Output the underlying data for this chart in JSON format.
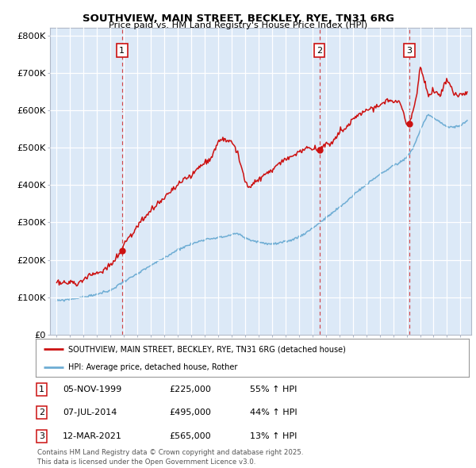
{
  "title": "SOUTHVIEW, MAIN STREET, BECKLEY, RYE, TN31 6RG",
  "subtitle": "Price paid vs. HM Land Registry's House Price Index (HPI)",
  "bg_color": "#dce9f7",
  "outer_bg_color": "#ffffff",
  "red_color": "#cc1111",
  "blue_color": "#6eadd4",
  "sale_dates_decimal": [
    1999.847,
    2014.513,
    2021.192
  ],
  "sale_prices": [
    225000,
    495000,
    565000
  ],
  "sale_labels": [
    "1",
    "2",
    "3"
  ],
  "legend_red": "SOUTHVIEW, MAIN STREET, BECKLEY, RYE, TN31 6RG (detached house)",
  "legend_blue": "HPI: Average price, detached house, Rother",
  "table": [
    {
      "num": "1",
      "date": "05-NOV-1999",
      "price": "£225,000",
      "change": "55% ↑ HPI"
    },
    {
      "num": "2",
      "date": "07-JUL-2014",
      "price": "£495,000",
      "change": "44% ↑ HPI"
    },
    {
      "num": "3",
      "date": "12-MAR-2021",
      "price": "£565,000",
      "change": "13% ↑ HPI"
    }
  ],
  "footer": "Contains HM Land Registry data © Crown copyright and database right 2025.\nThis data is licensed under the Open Government Licence v3.0.",
  "ylim": [
    0,
    820000
  ],
  "yticks": [
    0,
    100000,
    200000,
    300000,
    400000,
    500000,
    600000,
    700000,
    800000
  ],
  "ytick_labels": [
    "£0",
    "£100K",
    "£200K",
    "£300K",
    "£400K",
    "£500K",
    "£600K",
    "£700K",
    "£800K"
  ],
  "xlim": [
    1994.5,
    2025.8
  ],
  "xtick_years": [
    1995,
    1996,
    1997,
    1998,
    1999,
    2000,
    2001,
    2002,
    2003,
    2004,
    2005,
    2006,
    2007,
    2008,
    2009,
    2010,
    2011,
    2012,
    2013,
    2014,
    2015,
    2016,
    2017,
    2018,
    2019,
    2020,
    2021,
    2022,
    2023,
    2024,
    2025
  ],
  "hpi_knots_t": [
    1995,
    1996,
    1997,
    1998,
    1999,
    2000,
    2001,
    2002,
    2003,
    2004,
    2005,
    2006,
    2007,
    2007.5,
    2008,
    2008.5,
    2009,
    2009.5,
    2010,
    2010.5,
    2011,
    2011.5,
    2012,
    2012.5,
    2013,
    2013.5,
    2014,
    2014.5,
    2015,
    2015.5,
    2016,
    2016.5,
    2017,
    2017.5,
    2018,
    2018.5,
    2019,
    2019.5,
    2020,
    2020.5,
    2021,
    2021.5,
    2022,
    2022.3,
    2022.6,
    2023,
    2023.5,
    2024,
    2024.5,
    2025,
    2025.5
  ],
  "hpi_knots_v": [
    90000,
    95000,
    100000,
    108000,
    118000,
    143000,
    162000,
    185000,
    205000,
    228000,
    242000,
    255000,
    260000,
    262000,
    268000,
    270000,
    258000,
    252000,
    248000,
    244000,
    242000,
    244000,
    248000,
    254000,
    262000,
    272000,
    285000,
    298000,
    312000,
    326000,
    340000,
    355000,
    372000,
    388000,
    400000,
    415000,
    428000,
    440000,
    452000,
    460000,
    475000,
    500000,
    545000,
    570000,
    590000,
    580000,
    568000,
    555000,
    555000,
    560000,
    570000
  ],
  "red_knots_t": [
    1995,
    1995.5,
    1996,
    1996.5,
    1997,
    1997.5,
    1998,
    1998.5,
    1999,
    1999.5,
    1999.847,
    2000,
    2000.5,
    2001,
    2001.5,
    2002,
    2002.5,
    2003,
    2003.5,
    2004,
    2004.5,
    2005,
    2005.5,
    2006,
    2006.5,
    2007,
    2007.3,
    2007.5,
    2008,
    2008.5,
    2009,
    2009.3,
    2009.5,
    2010,
    2010.5,
    2011,
    2011.5,
    2012,
    2012.5,
    2013,
    2013.5,
    2014,
    2014.513,
    2015,
    2015.5,
    2016,
    2016.5,
    2017,
    2017.5,
    2018,
    2018.5,
    2019,
    2019.5,
    2020,
    2020.5,
    2021,
    2021.192,
    2021.5,
    2021.8,
    2022,
    2022.3,
    2022.6,
    2023,
    2023.5,
    2024,
    2024.5,
    2025,
    2025.5
  ],
  "red_knots_v": [
    140000,
    138000,
    140000,
    135000,
    148000,
    160000,
    162000,
    175000,
    185000,
    210000,
    225000,
    245000,
    265000,
    290000,
    310000,
    330000,
    350000,
    365000,
    385000,
    400000,
    415000,
    425000,
    445000,
    460000,
    475000,
    515000,
    525000,
    520000,
    520000,
    480000,
    405000,
    390000,
    400000,
    415000,
    430000,
    440000,
    455000,
    468000,
    475000,
    490000,
    500000,
    495000,
    495000,
    510000,
    515000,
    540000,
    555000,
    575000,
    590000,
    600000,
    608000,
    615000,
    628000,
    620000,
    625000,
    565000,
    565000,
    600000,
    650000,
    720000,
    680000,
    640000,
    650000,
    640000,
    685000,
    640000,
    640000,
    650000
  ]
}
